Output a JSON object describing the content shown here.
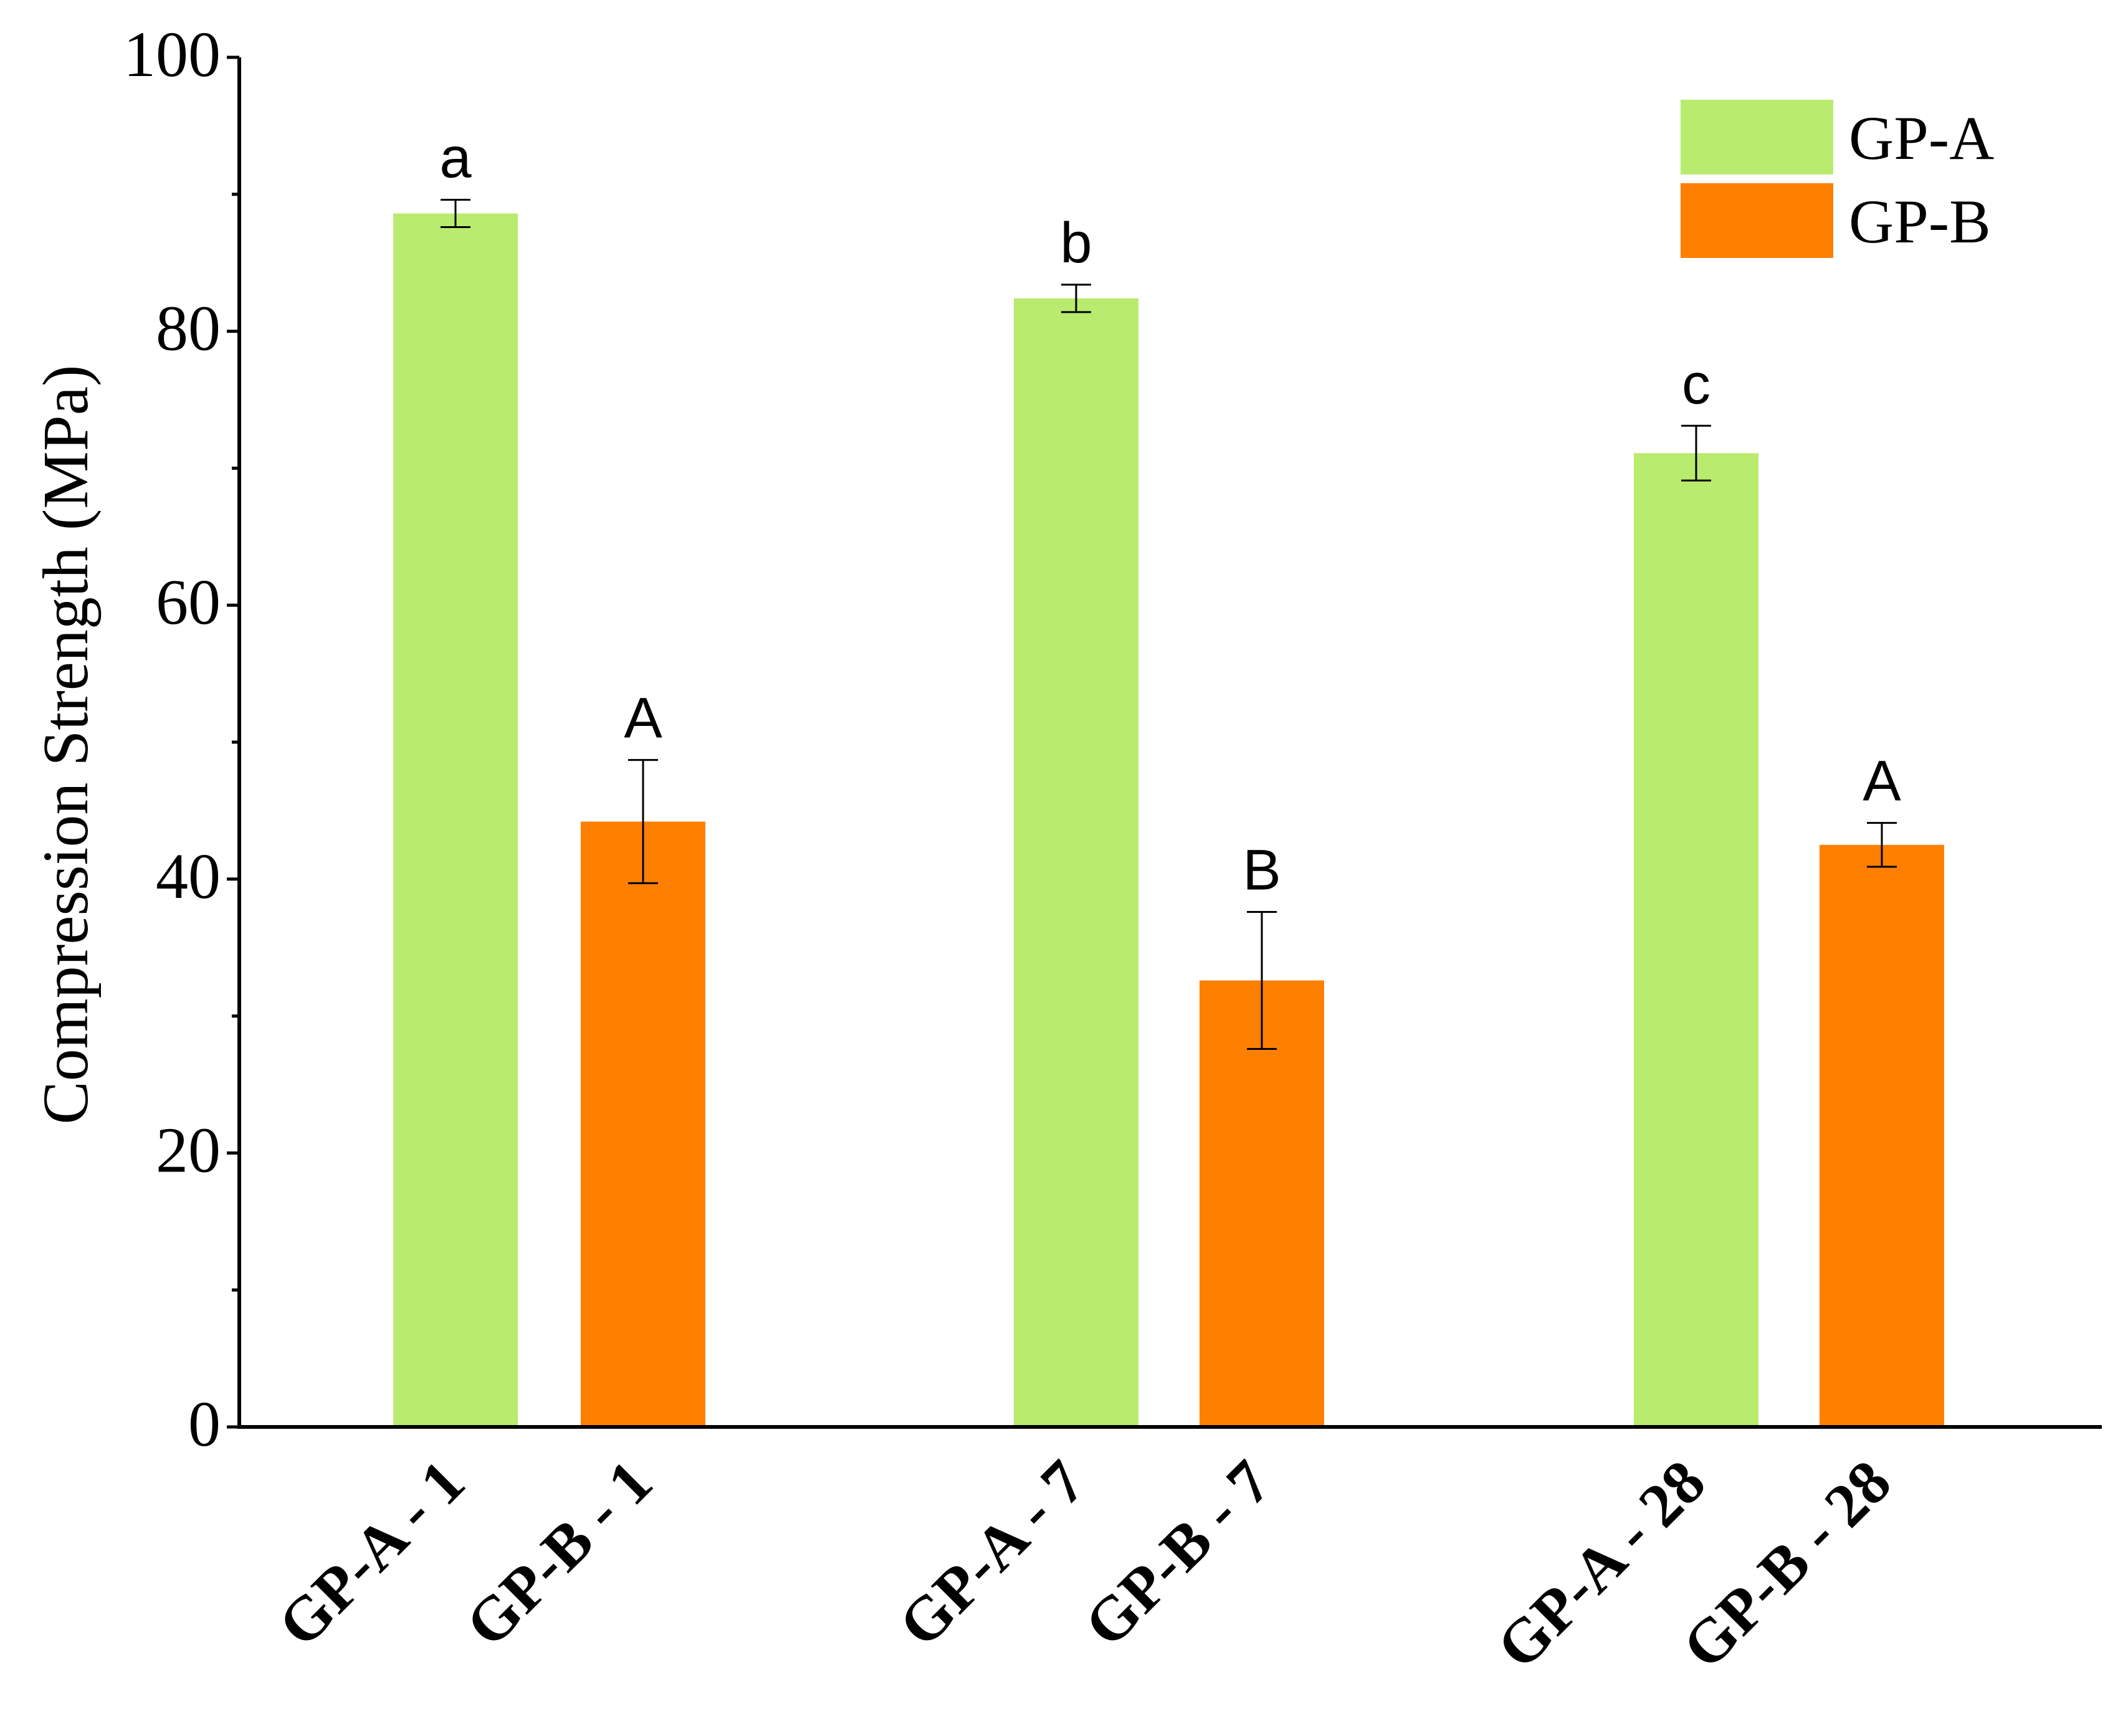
{
  "chart_data": {
    "type": "bar",
    "title": "",
    "xlabel": "",
    "ylabel": "Compression Strength (MPa)",
    "ylim": [
      0,
      100
    ],
    "yticks": [
      0,
      20,
      40,
      60,
      80,
      100
    ],
    "grid": false,
    "legend_position": "top-right",
    "categories": [
      "GP-A - 1",
      "GP-B - 1",
      "GP-A - 7",
      "GP-B - 7",
      "GP-A - 28",
      "GP-B - 28"
    ],
    "series": [
      {
        "name": "GP-A",
        "color": "#b9eb6e",
        "bars": [
          {
            "category": "GP-A - 1",
            "value": 88.6,
            "error": 1.0,
            "label": "a"
          },
          {
            "category": "GP-A - 7",
            "value": 82.4,
            "error": 1.0,
            "label": "b"
          },
          {
            "category": "GP-A - 28",
            "value": 71.1,
            "error": 2.0,
            "label": "c"
          }
        ]
      },
      {
        "name": "GP-B",
        "color": "#ff8000",
        "bars": [
          {
            "category": "GP-B - 1",
            "value": 44.2,
            "error": 4.5,
            "label": "A"
          },
          {
            "category": "GP-B - 7",
            "value": 32.6,
            "error": 5.0,
            "label": "B"
          },
          {
            "category": "GP-B - 28",
            "value": 42.5,
            "error": 1.6,
            "label": "A"
          }
        ]
      }
    ]
  }
}
